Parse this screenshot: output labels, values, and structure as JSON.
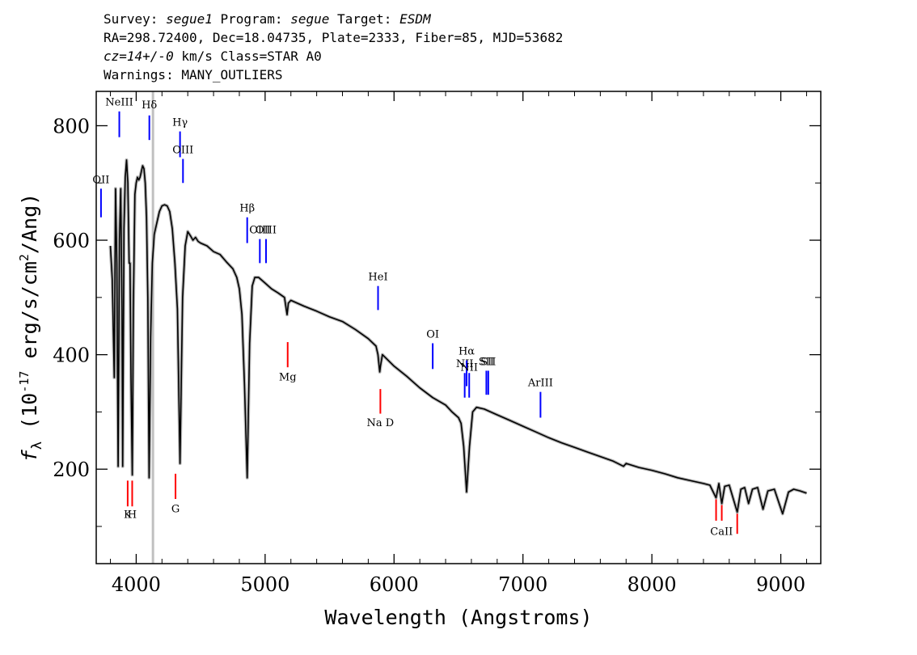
{
  "header": {
    "line1": {
      "survey_label": "Survey: ",
      "survey": "segue1",
      "program_label": " Program: ",
      "program": "segue",
      "target_label": " Target: ",
      "target": "ESDM"
    },
    "line2": "RA=298.72400, Dec=18.04735, Plate=2333, Fiber=85, MJD=53682",
    "line3": {
      "cz": "cz=14+/-0",
      "rest": " km/s Class=STAR A0"
    },
    "line4": "Warnings: MANY_OUTLIERS"
  },
  "colors": {
    "spectrum": "#000000",
    "error_band": "#b3b3b3",
    "emission_line": "#0000ff",
    "absorption_line": "#ff0000",
    "marker_line": "#c0c0c0"
  },
  "chart_data": {
    "type": "line",
    "xlabel": "Wavelength (Angstroms)",
    "ylabel": "f_λ (10^-17 erg/s/cm^2/Ang)",
    "xlim": [
      3690,
      9310
    ],
    "ylim": [
      35,
      860
    ],
    "x_ticks": [
      4000,
      5000,
      6000,
      7000,
      8000,
      9000
    ],
    "x_tick_labels": [
      "4000",
      "5000",
      "6000",
      "7000",
      "8000",
      "9000"
    ],
    "y_ticks": [
      200,
      400,
      600,
      800
    ],
    "y_tick_labels": [
      "200",
      "400",
      "600",
      "800"
    ],
    "vertical_marker_x": 4130,
    "series": [
      {
        "points": [
          [
            3800,
            590
          ],
          [
            3815,
            530
          ],
          [
            3830,
            360
          ],
          [
            3840,
            690
          ],
          [
            3850,
            560
          ],
          [
            3860,
            205
          ],
          [
            3870,
            600
          ],
          [
            3880,
            690
          ],
          [
            3890,
            480
          ],
          [
            3895,
            205
          ],
          [
            3905,
            620
          ],
          [
            3915,
            710
          ],
          [
            3925,
            740
          ],
          [
            3935,
            700
          ],
          [
            3945,
            560
          ],
          [
            3952,
            560
          ],
          [
            3960,
            360
          ],
          [
            3970,
            190
          ],
          [
            3978,
            480
          ],
          [
            3990,
            680
          ],
          [
            4000,
            700
          ],
          [
            4010,
            710
          ],
          [
            4020,
            705
          ],
          [
            4030,
            710
          ],
          [
            4040,
            720
          ],
          [
            4050,
            730
          ],
          [
            4060,
            725
          ],
          [
            4070,
            700
          ],
          [
            4080,
            640
          ],
          [
            4090,
            500
          ],
          [
            4100,
            185
          ],
          [
            4112,
            430
          ],
          [
            4125,
            560
          ],
          [
            4140,
            610
          ],
          [
            4160,
            630
          ],
          [
            4180,
            650
          ],
          [
            4200,
            660
          ],
          [
            4220,
            662
          ],
          [
            4240,
            660
          ],
          [
            4260,
            650
          ],
          [
            4280,
            620
          ],
          [
            4300,
            560
          ],
          [
            4320,
            480
          ],
          [
            4340,
            210
          ],
          [
            4360,
            500
          ],
          [
            4380,
            590
          ],
          [
            4400,
            615
          ],
          [
            4420,
            608
          ],
          [
            4440,
            600
          ],
          [
            4460,
            605
          ],
          [
            4480,
            598
          ],
          [
            4500,
            595
          ],
          [
            4550,
            590
          ],
          [
            4600,
            580
          ],
          [
            4650,
            575
          ],
          [
            4700,
            562
          ],
          [
            4750,
            550
          ],
          [
            4780,
            535
          ],
          [
            4800,
            515
          ],
          [
            4820,
            470
          ],
          [
            4840,
            350
          ],
          [
            4861,
            185
          ],
          [
            4880,
            420
          ],
          [
            4900,
            520
          ],
          [
            4920,
            535
          ],
          [
            4950,
            535
          ],
          [
            5000,
            525
          ],
          [
            5050,
            515
          ],
          [
            5100,
            508
          ],
          [
            5150,
            500
          ],
          [
            5170,
            470
          ],
          [
            5180,
            490
          ],
          [
            5200,
            495
          ],
          [
            5300,
            485
          ],
          [
            5400,
            476
          ],
          [
            5500,
            466
          ],
          [
            5600,
            458
          ],
          [
            5700,
            444
          ],
          [
            5800,
            428
          ],
          [
            5860,
            415
          ],
          [
            5875,
            400
          ],
          [
            5889,
            370
          ],
          [
            5895,
            380
          ],
          [
            5910,
            400
          ],
          [
            6000,
            380
          ],
          [
            6100,
            362
          ],
          [
            6200,
            342
          ],
          [
            6300,
            325
          ],
          [
            6400,
            312
          ],
          [
            6450,
            300
          ],
          [
            6500,
            290
          ],
          [
            6520,
            280
          ],
          [
            6540,
            240
          ],
          [
            6563,
            160
          ],
          [
            6585,
            240
          ],
          [
            6610,
            300
          ],
          [
            6640,
            308
          ],
          [
            6700,
            305
          ],
          [
            6800,
            295
          ],
          [
            6900,
            285
          ],
          [
            7000,
            275
          ],
          [
            7100,
            265
          ],
          [
            7200,
            255
          ],
          [
            7300,
            246
          ],
          [
            7400,
            238
          ],
          [
            7500,
            230
          ],
          [
            7600,
            222
          ],
          [
            7700,
            214
          ],
          [
            7780,
            205
          ],
          [
            7800,
            210
          ],
          [
            7900,
            203
          ],
          [
            8000,
            198
          ],
          [
            8100,
            192
          ],
          [
            8200,
            185
          ],
          [
            8300,
            180
          ],
          [
            8400,
            175
          ],
          [
            8450,
            172
          ],
          [
            8498,
            150
          ],
          [
            8520,
            175
          ],
          [
            8542,
            140
          ],
          [
            8565,
            170
          ],
          [
            8600,
            172
          ],
          [
            8662,
            125
          ],
          [
            8690,
            165
          ],
          [
            8720,
            168
          ],
          [
            8750,
            140
          ],
          [
            8780,
            165
          ],
          [
            8820,
            168
          ],
          [
            8862,
            130
          ],
          [
            8900,
            162
          ],
          [
            8950,
            165
          ],
          [
            9014,
            122
          ],
          [
            9060,
            160
          ],
          [
            9100,
            165
          ],
          [
            9150,
            162
          ],
          [
            9200,
            158
          ]
        ]
      }
    ],
    "emission_lines": [
      {
        "label": "OII",
        "x": 3727,
        "y_low": 640,
        "y_high": 690,
        "label_y": 700
      },
      {
        "label": "NeIII",
        "x": 3869,
        "y_low": 780,
        "y_high": 825,
        "label_y": 835
      },
      {
        "label": "Hδ",
        "x": 4102,
        "y_low": 775,
        "y_high": 818,
        "label_y": 830
      },
      {
        "label": "Hγ",
        "x": 4340,
        "y_low": 745,
        "y_high": 790,
        "label_y": 800
      },
      {
        "label": "OIII",
        "x": 4363,
        "y_low": 700,
        "y_high": 742,
        "label_y": 752
      },
      {
        "label": "Hβ",
        "x": 4861,
        "y_low": 595,
        "y_high": 640,
        "label_y": 650
      },
      {
        "label": "OIII",
        "x": 4959,
        "y_low": 560,
        "y_high": 602,
        "label_y": 612
      },
      {
        "label": "OIII",
        "x": 5007,
        "y_low": 560,
        "y_high": 602,
        "label_y": 612
      },
      {
        "label": "HeI",
        "x": 5876,
        "y_low": 478,
        "y_high": 520,
        "label_y": 530
      },
      {
        "label": "OI",
        "x": 6300,
        "y_low": 375,
        "y_high": 420,
        "label_y": 430
      },
      {
        "label": "NII",
        "x": 6548,
        "y_low": 325,
        "y_high": 368,
        "label_y": 378
      },
      {
        "label": "Hα",
        "x": 6563,
        "y_low": 345,
        "y_high": 390,
        "label_y": 400
      },
      {
        "label": "NII",
        "x": 6583,
        "y_low": 325,
        "y_high": 368,
        "label_y": 372
      },
      {
        "label": "SII",
        "x": 6716,
        "y_low": 330,
        "y_high": 372,
        "label_y": 382
      },
      {
        "label": "SII",
        "x": 6731,
        "y_low": 330,
        "y_high": 372,
        "label_y": 382
      },
      {
        "label": "ArIII",
        "x": 7136,
        "y_low": 290,
        "y_high": 335,
        "label_y": 345
      }
    ],
    "absorption_lines": [
      {
        "label": "K",
        "x": 3934,
        "y_low": 135,
        "y_high": 180,
        "label_y": 115
      },
      {
        "label": "H",
        "x": 3969,
        "y_low": 135,
        "y_high": 180,
        "label_y": 115
      },
      {
        "label": "G",
        "x": 4305,
        "y_low": 148,
        "y_high": 192,
        "label_y": 125
      },
      {
        "label": "Mg",
        "x": 5175,
        "y_low": 378,
        "y_high": 422,
        "label_y": 355
      },
      {
        "label": "Na D",
        "x": 5894,
        "y_low": 297,
        "y_high": 340,
        "label_y": 275
      },
      {
        "label": "CaII",
        "x": 8498,
        "y_low": 110,
        "y_high": 155,
        "label_y": 85
      },
      {
        "label": "CaII",
        "x": 8542,
        "y_low": 110,
        "y_high": 155,
        "label_y": 85
      },
      {
        "label": "CaII",
        "x": 8662,
        "y_low": 87,
        "y_high": 130,
        "label_y": 85
      }
    ],
    "absorption_group_labels": [
      {
        "label": "K",
        "x": 3934,
        "label_y": 115
      },
      {
        "label": "H",
        "x": 3969,
        "label_y": 115
      },
      {
        "label": "G",
        "x": 4305,
        "label_y": 125
      },
      {
        "label": "Mg",
        "x": 5175,
        "label_y": 355
      },
      {
        "label": "Na  D",
        "x": 5894,
        "label_y": 275
      },
      {
        "label": "CaII",
        "x": 8540,
        "label_y": 85
      }
    ]
  }
}
